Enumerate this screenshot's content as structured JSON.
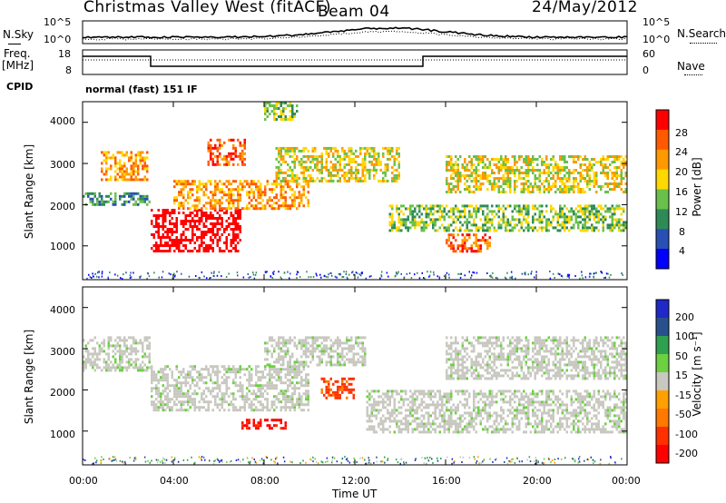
{
  "header": {
    "station": "Christmas Valley West (fitACF)",
    "beam": "Beam 04",
    "date": "24/May/2012"
  },
  "noise_panel": {
    "left_label": "N.Sky",
    "right_label": "N.Search",
    "y_ticks": [
      "10^5",
      "10^0"
    ]
  },
  "freq_panel": {
    "left_label_1": "Freq.",
    "left_label_2": "[MHz]",
    "left_ticks": [
      "18",
      "8"
    ],
    "right_label": "Nave",
    "right_ticks": [
      "60",
      "0"
    ]
  },
  "cpid": {
    "label": "CPID",
    "value": "normal (fast) 151 IF"
  },
  "power_panel": {
    "ylabel": "Slant Range [km]",
    "y_ticks": [
      "4000",
      "3000",
      "2000",
      "1000"
    ],
    "colorbar_label": "Power [dB]",
    "colorbar_ticks": [
      "28",
      "24",
      "20",
      "16",
      "12",
      "8",
      "4"
    ],
    "colors": [
      "#0000ff",
      "#2850b4",
      "#2e8b57",
      "#6ac04a",
      "#ffd800",
      "#ff9900",
      "#ff5a00",
      "#ff0000"
    ]
  },
  "velocity_panel": {
    "ylabel": "Slant Range [km]",
    "y_ticks": [
      "4000",
      "3000",
      "2000",
      "1000"
    ],
    "colorbar_label": "Velocity [m s⁻¹]",
    "colorbar_ticks": [
      "200",
      "100",
      "50",
      "15",
      "-15",
      "-50",
      "-100",
      "-200"
    ],
    "colors": [
      "#2028c8",
      "#28508c",
      "#2ea050",
      "#6cd040",
      "#c8c8c0",
      "#ffa000",
      "#ff7800",
      "#ff3000",
      "#ff0000"
    ]
  },
  "x_axis": {
    "ticks": [
      "00:00",
      "04:00",
      "08:00",
      "12:00",
      "16:00",
      "20:00",
      "00:00"
    ],
    "label": "Time UT"
  },
  "chart_data": {
    "type": "heatmap",
    "title": "Christmas Valley West (fitACF)",
    "x_range_hours": [
      0,
      24
    ],
    "y_range_km": [
      180,
      4500
    ],
    "power_bands": [
      {
        "t": [
          0.0,
          3.0
        ],
        "r": [
          2000,
          2300
        ],
        "level": 8
      },
      {
        "t": [
          0.8,
          2.9
        ],
        "r": [
          2600,
          3300
        ],
        "level": 20
      },
      {
        "t": [
          3.0,
          7.0
        ],
        "r": [
          900,
          1900
        ],
        "level": 30
      },
      {
        "t": [
          4.0,
          10.0
        ],
        "r": [
          1900,
          2600
        ],
        "level": 18
      },
      {
        "t": [
          5.5,
          7.2
        ],
        "r": [
          3000,
          3600
        ],
        "level": 22
      },
      {
        "t": [
          8.0,
          9.5
        ],
        "r": [
          4100,
          4500
        ],
        "level": 10
      },
      {
        "t": [
          8.5,
          14.0
        ],
        "r": [
          2600,
          3400
        ],
        "level": 16
      },
      {
        "t": [
          13.5,
          24.0
        ],
        "r": [
          1400,
          2000
        ],
        "level": 12
      },
      {
        "t": [
          16.0,
          18.0
        ],
        "r": [
          900,
          1300
        ],
        "level": 24
      },
      {
        "t": [
          16.0,
          24.0
        ],
        "r": [
          2300,
          3200
        ],
        "level": 16
      }
    ],
    "velocity_bands": [
      {
        "t": [
          0.0,
          3.0
        ],
        "r": [
          2500,
          3300
        ],
        "value": 0
      },
      {
        "t": [
          3.0,
          10.0
        ],
        "r": [
          1500,
          2600
        ],
        "value": 0
      },
      {
        "t": [
          7.0,
          9.0
        ],
        "r": [
          1100,
          1300
        ],
        "value": -200
      },
      {
        "t": [
          8.0,
          12.5
        ],
        "r": [
          2600,
          3300
        ],
        "value": 0
      },
      {
        "t": [
          10.5,
          12.0
        ],
        "r": [
          1800,
          2300
        ],
        "value": -150
      },
      {
        "t": [
          12.5,
          24.0
        ],
        "r": [
          1000,
          2000
        ],
        "value": 0
      },
      {
        "t": [
          16.0,
          24.0
        ],
        "r": [
          2300,
          3300
        ],
        "value": 0
      }
    ]
  }
}
